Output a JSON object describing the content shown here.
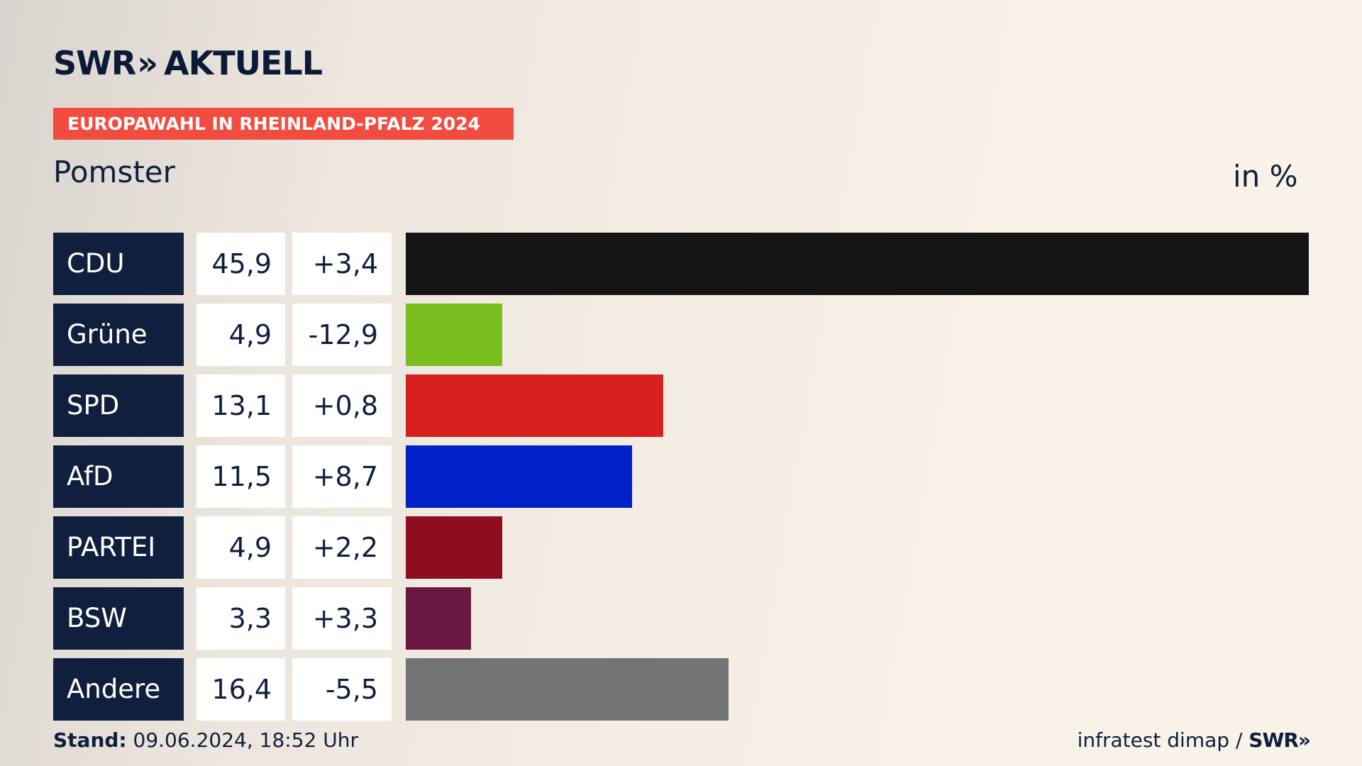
{
  "brand": {
    "logo_text": "SWR",
    "logo_chevrons": "»",
    "logo_suffix": "AKTUELL"
  },
  "banner": {
    "title": "EUROPAWAHL IN RHEINLAND-PFALZ 2024"
  },
  "header": {
    "place": "Pomster",
    "unit": "in %"
  },
  "chart_data": {
    "type": "bar",
    "orientation": "horizontal",
    "title": "EUROPAWAHL IN RHEINLAND-PFALZ 2024",
    "subtitle": "Pomster",
    "unit": "in %",
    "categories": [
      "CDU",
      "Grüne",
      "SPD",
      "AfD",
      "PARTEI",
      "BSW",
      "Andere"
    ],
    "values": [
      45.9,
      4.9,
      13.1,
      11.5,
      4.9,
      3.3,
      16.4
    ],
    "value_labels": [
      "45,9",
      "4,9",
      "13,1",
      "11,5",
      "4,9",
      "3,3",
      "16,4"
    ],
    "change_labels": [
      "+3,4",
      "-12,9",
      "+0,8",
      "+8,7",
      "+2,2",
      "+3,3",
      "-5,5"
    ],
    "colors": [
      "#141414",
      "#79bd1f",
      "#d71f1d",
      "#0021c8",
      "#900d20",
      "#6a1841",
      "#737475"
    ],
    "xlim": [
      0,
      45.9
    ],
    "grid": false,
    "legend": "none"
  },
  "footer": {
    "stand_label": "Stand:",
    "stand_value": " 09.06.2024, 18:52 Uhr",
    "source_text": "infratest dimap / ",
    "source_brand": "SWR",
    "source_chevrons": "»"
  }
}
